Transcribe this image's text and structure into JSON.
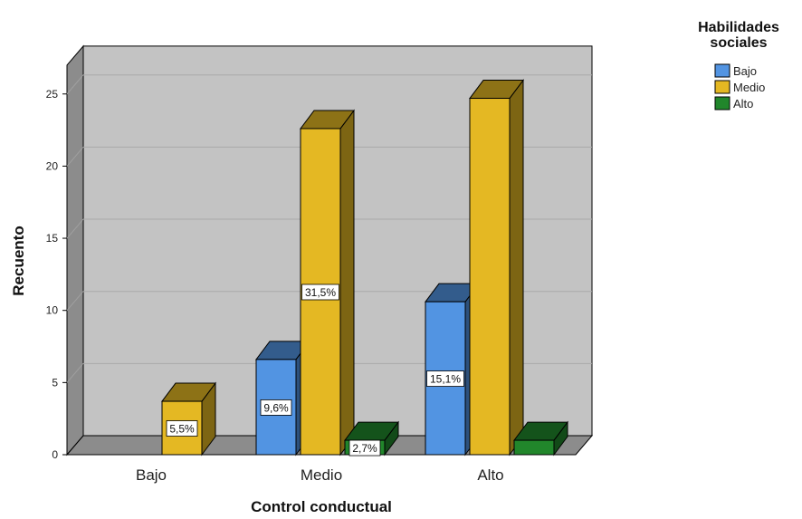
{
  "chart_data": {
    "type": "bar",
    "style": "3d-clustered",
    "xlabel": "Control conductual",
    "ylabel": "Recuento",
    "categories": [
      "Bajo",
      "Medio",
      "Alto"
    ],
    "ylim": [
      0,
      27
    ],
    "yticks": [
      "0",
      "5",
      "10",
      "15",
      "20",
      "25"
    ],
    "grid": true,
    "legend": {
      "title_lines": [
        "Habilidades",
        "sociales"
      ],
      "placement": "top-right"
    },
    "series": [
      {
        "name": "Bajo",
        "color": "#5294e2",
        "values": [
          0,
          6.6,
          10.6
        ],
        "labels": [
          "",
          "9,6%",
          "15,1%"
        ]
      },
      {
        "name": "Medio",
        "color": "#e4b823",
        "values": [
          3.7,
          22.6,
          24.7
        ],
        "labels": [
          "5,5%",
          "31,5%",
          ""
        ]
      },
      {
        "name": "Alto",
        "color": "#21862b",
        "values": [
          0,
          1.0,
          1.0
        ],
        "labels": [
          "",
          "2,7%",
          ""
        ]
      }
    ]
  }
}
